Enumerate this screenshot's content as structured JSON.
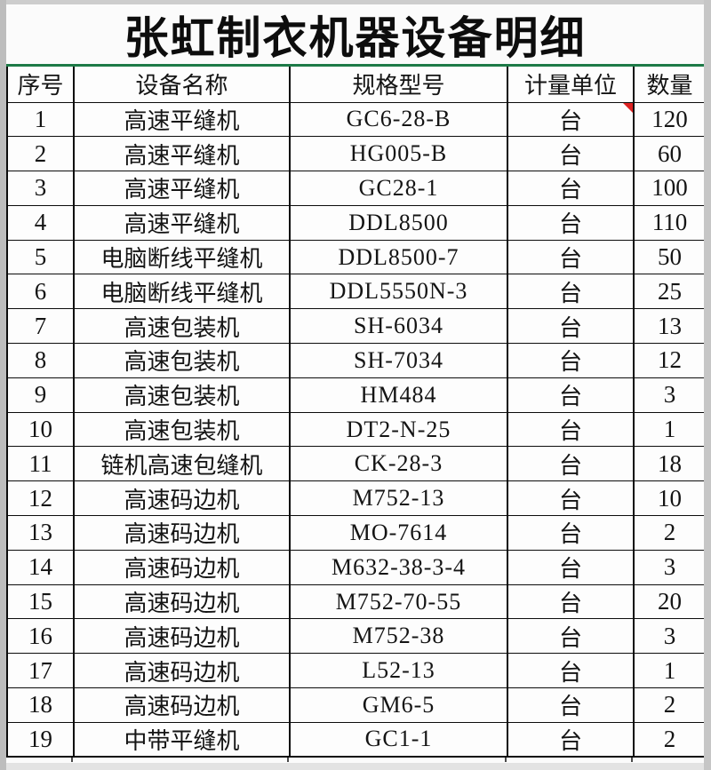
{
  "title": "张虹制衣机器设备明细",
  "colors": {
    "title_rule_green": "#1d7a47",
    "comment_marker_red": "#dd2222",
    "grid_black": "#0c0c0c"
  },
  "table": {
    "columns": [
      "序号",
      "设备名称",
      "规格型号",
      "计量单位",
      "数量"
    ],
    "rows": [
      {
        "no": "1",
        "name": "高速平缝机",
        "model": "GC6-28-B",
        "unit": "台",
        "qty": "120",
        "has_comment_marker": true
      },
      {
        "no": "2",
        "name": "高速平缝机",
        "model": "HG005-B",
        "unit": "台",
        "qty": "60"
      },
      {
        "no": "3",
        "name": "高速平缝机",
        "model": "GC28-1",
        "unit": "台",
        "qty": "100"
      },
      {
        "no": "4",
        "name": "高速平缝机",
        "model": "DDL8500",
        "unit": "台",
        "qty": "110"
      },
      {
        "no": "5",
        "name": "电脑断线平缝机",
        "model": "DDL8500-7",
        "unit": "台",
        "qty": "50"
      },
      {
        "no": "6",
        "name": "电脑断线平缝机",
        "model": "DDL5550N-3",
        "unit": "台",
        "qty": "25"
      },
      {
        "no": "7",
        "name": "高速包装机",
        "model": "SH-6034",
        "unit": "台",
        "qty": "13"
      },
      {
        "no": "8",
        "name": "高速包装机",
        "model": "SH-7034",
        "unit": "台",
        "qty": "12"
      },
      {
        "no": "9",
        "name": "高速包装机",
        "model": "HM484",
        "unit": "台",
        "qty": "3"
      },
      {
        "no": "10",
        "name": "高速包装机",
        "model": "DT2-N-25",
        "unit": "台",
        "qty": "1"
      },
      {
        "no": "11",
        "name": "链机高速包缝机",
        "model": "CK-28-3",
        "unit": "台",
        "qty": "18"
      },
      {
        "no": "12",
        "name": "高速码边机",
        "model": "M752-13",
        "unit": "台",
        "qty": "10"
      },
      {
        "no": "13",
        "name": "高速码边机",
        "model": "MO-7614",
        "unit": "台",
        "qty": "2"
      },
      {
        "no": "14",
        "name": "高速码边机",
        "model": "M632-38-3-4",
        "unit": "台",
        "qty": "3"
      },
      {
        "no": "15",
        "name": "高速码边机",
        "model": "M752-70-55",
        "unit": "台",
        "qty": "20"
      },
      {
        "no": "16",
        "name": "高速码边机",
        "model": "M752-38",
        "unit": "台",
        "qty": "3"
      },
      {
        "no": "17",
        "name": "高速码边机",
        "model": "L52-13",
        "unit": "台",
        "qty": "1"
      },
      {
        "no": "18",
        "name": "高速码边机",
        "model": "GM6-5",
        "unit": "台",
        "qty": "2"
      },
      {
        "no": "19",
        "name": "中带平缝机",
        "model": "GC1-1",
        "unit": "台",
        "qty": "2"
      }
    ]
  }
}
